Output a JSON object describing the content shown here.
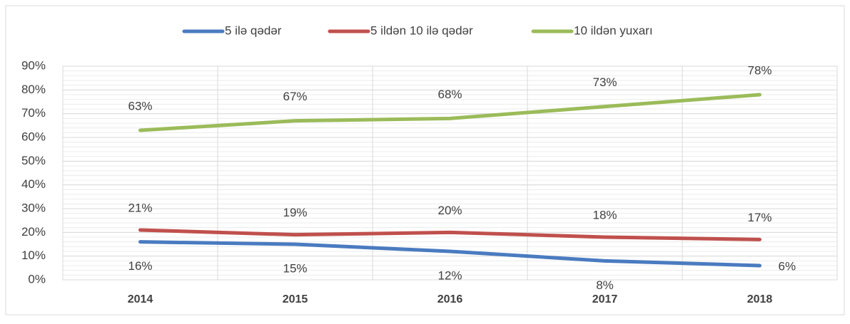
{
  "chart_data": {
    "type": "line",
    "categories": [
      "2014",
      "2015",
      "2016",
      "2017",
      "2018"
    ],
    "series": [
      {
        "name": "5 ilə qədər",
        "color": "#4a7bc0",
        "values": [
          16,
          15,
          12,
          8,
          6
        ],
        "value_labels": [
          "16%",
          "15%",
          "12%",
          "8%",
          "6%"
        ]
      },
      {
        "name": "5 ildən 10 ilə qədər",
        "color": "#c0504d",
        "values": [
          21,
          19,
          20,
          18,
          17
        ],
        "value_labels": [
          "21%",
          "19%",
          "20%",
          "18%",
          "17%"
        ]
      },
      {
        "name": "10 ildən yuxarı",
        "color": "#9bbb59",
        "values": [
          63,
          67,
          68,
          73,
          78
        ],
        "value_labels": [
          "63%",
          "67%",
          "68%",
          "73%",
          "78%"
        ]
      }
    ],
    "ylim": [
      0,
      90
    ],
    "yticks": [
      {
        "value": 0,
        "label": "0%"
      },
      {
        "value": 10,
        "label": "10%"
      },
      {
        "value": 20,
        "label": "20%"
      },
      {
        "value": 30,
        "label": "30%"
      },
      {
        "value": 40,
        "label": "40%"
      },
      {
        "value": 50,
        "label": "50%"
      },
      {
        "value": 60,
        "label": "60%"
      },
      {
        "value": 70,
        "label": "70%"
      },
      {
        "value": 80,
        "label": "80%"
      },
      {
        "value": 90,
        "label": "90%"
      }
    ],
    "grid": true,
    "legend": "top"
  }
}
